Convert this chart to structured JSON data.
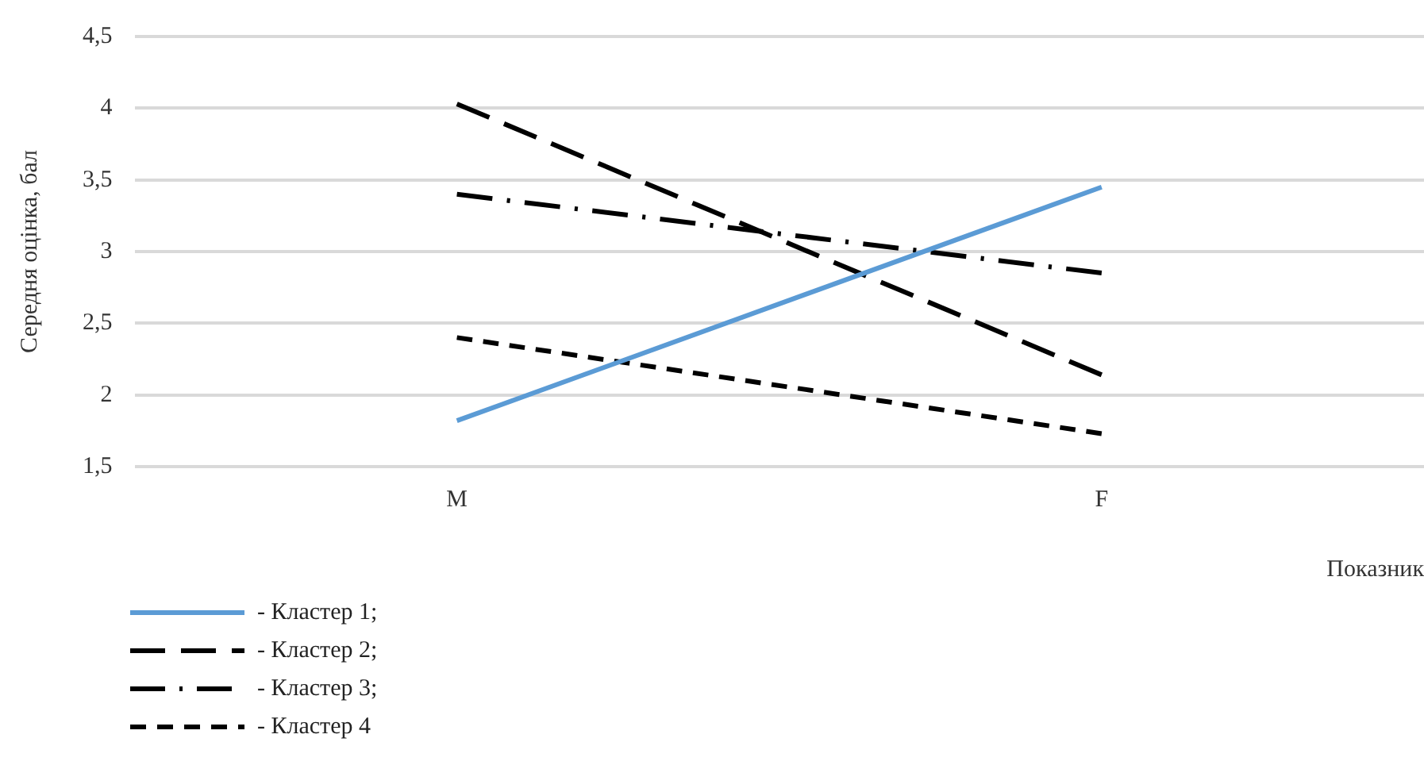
{
  "chart_data": {
    "type": "line",
    "xlabel": "Показник",
    "ylabel": "Середня оцінка, бал",
    "categories": [
      "M",
      "F"
    ],
    "series": [
      {
        "name": "- Кластер 1;",
        "color": "#5b9bd5",
        "line_style": "solid",
        "values": [
          1.82,
          3.45
        ]
      },
      {
        "name": "- Кластер 2;",
        "color": "#000000",
        "line_style": "longdash",
        "values": [
          4.03,
          2.14
        ]
      },
      {
        "name": "- Кластер 3;",
        "color": "#000000",
        "line_style": "dashdot",
        "values": [
          3.4,
          2.85
        ]
      },
      {
        "name": "- Кластер 4",
        "color": "#000000",
        "line_style": "dashed",
        "values": [
          2.4,
          1.73
        ]
      }
    ],
    "ylim": [
      1.5,
      4.5
    ],
    "yticks": [
      {
        "value": 1.5,
        "label": "1,5"
      },
      2,
      {
        "value": 2.5,
        "label": "2,5"
      },
      3,
      {
        "value": 3.5,
        "label": "3,5"
      },
      4,
      {
        "value": 4.5,
        "label": "4,5"
      }
    ],
    "grid": "y",
    "legend": "bottom left",
    "marker": "none"
  }
}
